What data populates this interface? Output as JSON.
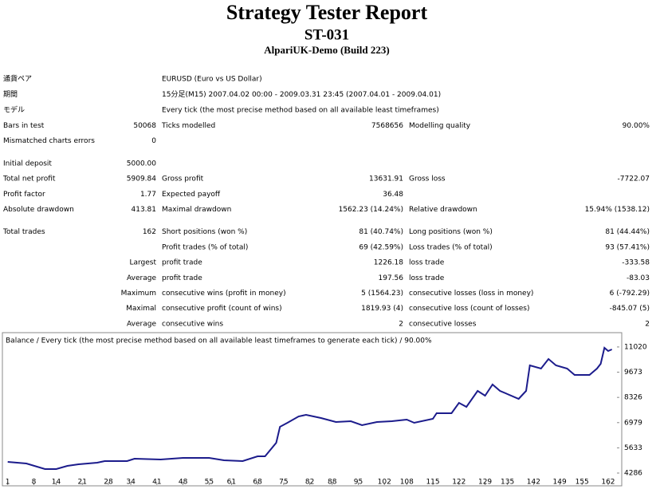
{
  "header": {
    "title": "Strategy Tester Report",
    "subtitle": "ST-031",
    "server": "AlpariUK-Demo (Build 223)"
  },
  "table": {
    "info": [
      [
        "通貨ペア",
        "EURUSD (Euro vs US Dollar)"
      ],
      [
        "期間",
        "15分足(M15) 2007.04.02 00:00 - 2009.03.31 23:45 (2007.04.01 - 2009.04.01)"
      ],
      [
        "モデル",
        "Every tick (the most precise method based on all available least timeframes)"
      ]
    ],
    "sections": [
      [
        [
          "Bars in test",
          "50068",
          "Ticks modelled",
          "7568656",
          "Modelling quality",
          "90.00%"
        ],
        [
          "Mismatched charts errors",
          "0",
          null,
          null,
          null,
          null
        ]
      ],
      [
        [
          "Initial deposit",
          "5000.00",
          null,
          null,
          null,
          null
        ],
        [
          "Total net profit",
          "5909.84",
          "Gross profit",
          "13631.91",
          "Gross loss",
          "-7722.07"
        ],
        [
          "Profit factor",
          "1.77",
          "Expected payoff",
          "36.48",
          null,
          null
        ],
        [
          "Absolute drawdown",
          "413.81",
          "Maximal drawdown",
          "1562.23 (14.24%)",
          "Relative drawdown",
          "15.94% (1538.12)"
        ]
      ],
      [
        [
          "Total trades",
          "162",
          "Short positions (won %)",
          "81 (40.74%)",
          "Long positions (won %)",
          "81 (44.44%)"
        ],
        [
          null,
          null,
          "Profit trades (% of total)",
          "69 (42.59%)",
          "Loss trades (% of total)",
          "93 (57.41%)"
        ],
        [
          null,
          "Largest",
          "profit trade",
          "1226.18",
          "loss trade",
          "-333.58"
        ],
        [
          null,
          "Average",
          "profit trade",
          "197.56",
          "loss trade",
          "-83.03"
        ],
        [
          null,
          "Maximum",
          "consecutive wins (profit in money)",
          "5 (1564.23)",
          "consecutive losses (loss in money)",
          "6 (-792.29)"
        ],
        [
          null,
          "Maximal",
          "consecutive profit (count of wins)",
          "1819.93 (4)",
          "consecutive loss (count of losses)",
          "-845.07 (5)"
        ],
        [
          null,
          "Average",
          "consecutive wins",
          "2",
          "consecutive losses",
          "2"
        ]
      ]
    ]
  },
  "chart_data": {
    "type": "line",
    "title": "Balance / Every tick (the most precise method based on all available least timeframes to generate each tick) / 90.00%",
    "x": [
      1,
      6,
      11,
      14,
      17,
      20,
      25,
      27,
      33,
      35,
      42,
      48,
      55,
      59,
      64,
      68,
      70,
      73,
      74,
      76,
      79,
      81,
      85,
      89,
      93,
      96,
      100,
      104,
      108,
      110,
      115,
      116,
      120,
      122,
      124,
      127,
      129,
      131,
      133,
      138,
      140,
      141,
      144,
      146,
      148,
      151,
      153,
      157,
      159,
      160,
      161,
      162,
      163
    ],
    "series": [
      {
        "name": "Balance",
        "color": "#1c1c8c",
        "values": [
          4883,
          4797,
          4499,
          4499,
          4670,
          4755,
          4840,
          4925,
          4925,
          5053,
          5010,
          5095,
          5095,
          4968,
          4925,
          5181,
          5181,
          5905,
          6757,
          6970,
          7310,
          7396,
          7226,
          7012,
          7055,
          6842,
          7012,
          7055,
          7140,
          6970,
          7183,
          7481,
          7481,
          8034,
          7821,
          8674,
          8418,
          9015,
          8674,
          8248,
          8674,
          10037,
          9866,
          10377,
          10037,
          9866,
          9526,
          9526,
          9866,
          10122,
          10974,
          10804,
          10889
        ]
      }
    ],
    "xlim": [
      0,
      165
    ],
    "ylim": [
      3647,
      11741
    ],
    "xticks": [
      1,
      8,
      14,
      21,
      28,
      34,
      41,
      48,
      55,
      61,
      68,
      75,
      82,
      88,
      95,
      102,
      108,
      115,
      122,
      129,
      135,
      142,
      149,
      155,
      162
    ],
    "yticks": [
      4286,
      5633,
      6979,
      8326,
      9673,
      11020
    ]
  }
}
